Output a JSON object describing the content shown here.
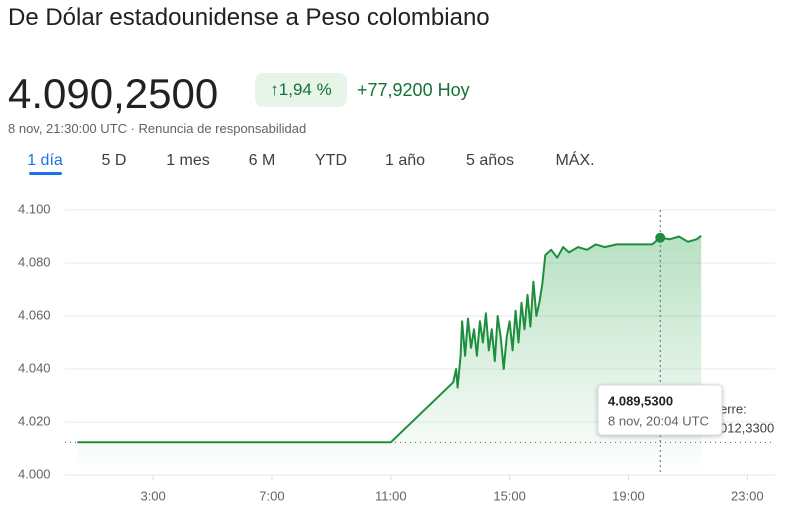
{
  "header": {
    "title": "De Dólar estadounidense a Peso colombiano",
    "price": "4.090,2500",
    "change_percent": "1,94 %",
    "change": "+77,9200 Hoy",
    "subtitle": "8 nov, 21:30:00 UTC · Renuncia de responsabilidad"
  },
  "tabs": [
    "1 día",
    "5 D",
    "1 mes",
    "6 M",
    "YTD",
    "1 año",
    "5 años",
    "MÁX."
  ],
  "chart_data": {
    "type": "line",
    "x": [
      0.45,
      11.0,
      13.1,
      13.2,
      13.25,
      13.35,
      13.4,
      13.5,
      13.6,
      13.7,
      13.8,
      13.9,
      14.0,
      14.1,
      14.2,
      14.3,
      14.4,
      14.5,
      14.6,
      14.7,
      14.8,
      14.9,
      15.0,
      15.1,
      15.2,
      15.3,
      15.4,
      15.5,
      15.6,
      15.7,
      15.8,
      15.9,
      16.0,
      16.1,
      16.2,
      16.4,
      16.6,
      16.8,
      17.0,
      17.3,
      17.6,
      17.9,
      18.2,
      18.6,
      19.0,
      19.4,
      19.8,
      20.07,
      20.4,
      20.7,
      21.0,
      21.3,
      21.45
    ],
    "series": [
      {
        "color": "#1e8e3e",
        "values": [
          4012.33,
          4012.33,
          4035,
          4040,
          4033,
          4045,
          4058,
          4045,
          4059,
          4048,
          4055,
          4045,
          4058,
          4050,
          4061,
          4047,
          4055,
          4043,
          4060,
          4052,
          4040,
          4052,
          4058,
          4047,
          4062,
          4050,
          4065,
          4055,
          4068,
          4056,
          4073,
          4060,
          4065,
          4072,
          4083,
          4085,
          4082,
          4086,
          4084,
          4086,
          4085,
          4087,
          4086,
          4087,
          4087,
          4087,
          4087,
          4089.53,
          4089,
          4090,
          4088,
          4089,
          4090.25
        ]
      }
    ],
    "xlim": [
      0,
      24
    ],
    "xticks": [
      {
        "value": 3,
        "label": "3:00"
      },
      {
        "value": 7,
        "label": "7:00"
      },
      {
        "value": 11,
        "label": "11:00"
      },
      {
        "value": 15,
        "label": "15:00"
      },
      {
        "value": 19,
        "label": "19:00"
      },
      {
        "value": 23,
        "label": "23:00"
      }
    ],
    "ylim": [
      4000,
      4100
    ],
    "yticks": [
      {
        "value": 4000,
        "label": "4.000"
      },
      {
        "value": 4020,
        "label": "4.020"
      },
      {
        "value": 4040,
        "label": "4.040"
      },
      {
        "value": 4060,
        "label": "4.060"
      },
      {
        "value": 4080,
        "label": "4.080"
      },
      {
        "value": 4100,
        "label": "4.100"
      }
    ],
    "grid": true,
    "previous_close": 4012.33,
    "previous_close_labels": [
      "erre:",
      "012,3300"
    ],
    "hover": {
      "x": 20.07,
      "value": 4089.53,
      "value_label": "4.089,5300",
      "label": "8 nov, 20:04 UTC"
    }
  }
}
